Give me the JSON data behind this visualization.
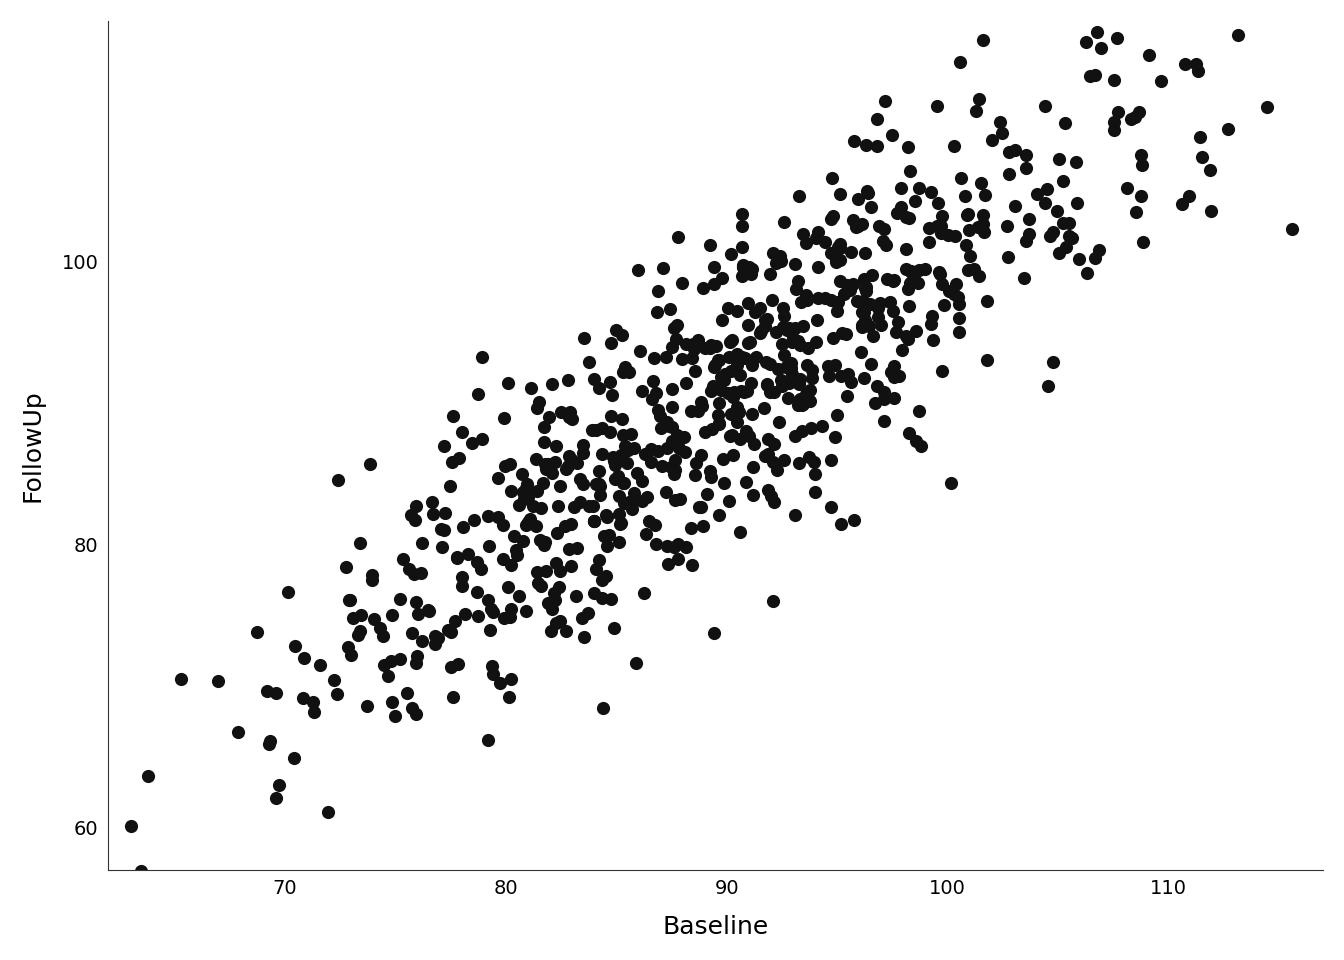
{
  "title": "",
  "xlabel": "Baseline",
  "ylabel": "FollowUp",
  "xlim": [
    62,
    117
  ],
  "ylim": [
    57,
    117
  ],
  "xticks": [
    70,
    80,
    90,
    100,
    110
  ],
  "yticks": [
    60,
    80,
    100
  ],
  "point_color": "#111111",
  "point_size": 90,
  "point_alpha": 1.0,
  "background_color": "#ffffff",
  "n_points": 800,
  "seed": 42,
  "mean_baseline": 90,
  "std_baseline": 10,
  "slope": 1.0,
  "intercept": 0,
  "noise_std": 5.5,
  "xlabel_fontsize": 18,
  "ylabel_fontsize": 18,
  "tick_fontsize": 14
}
